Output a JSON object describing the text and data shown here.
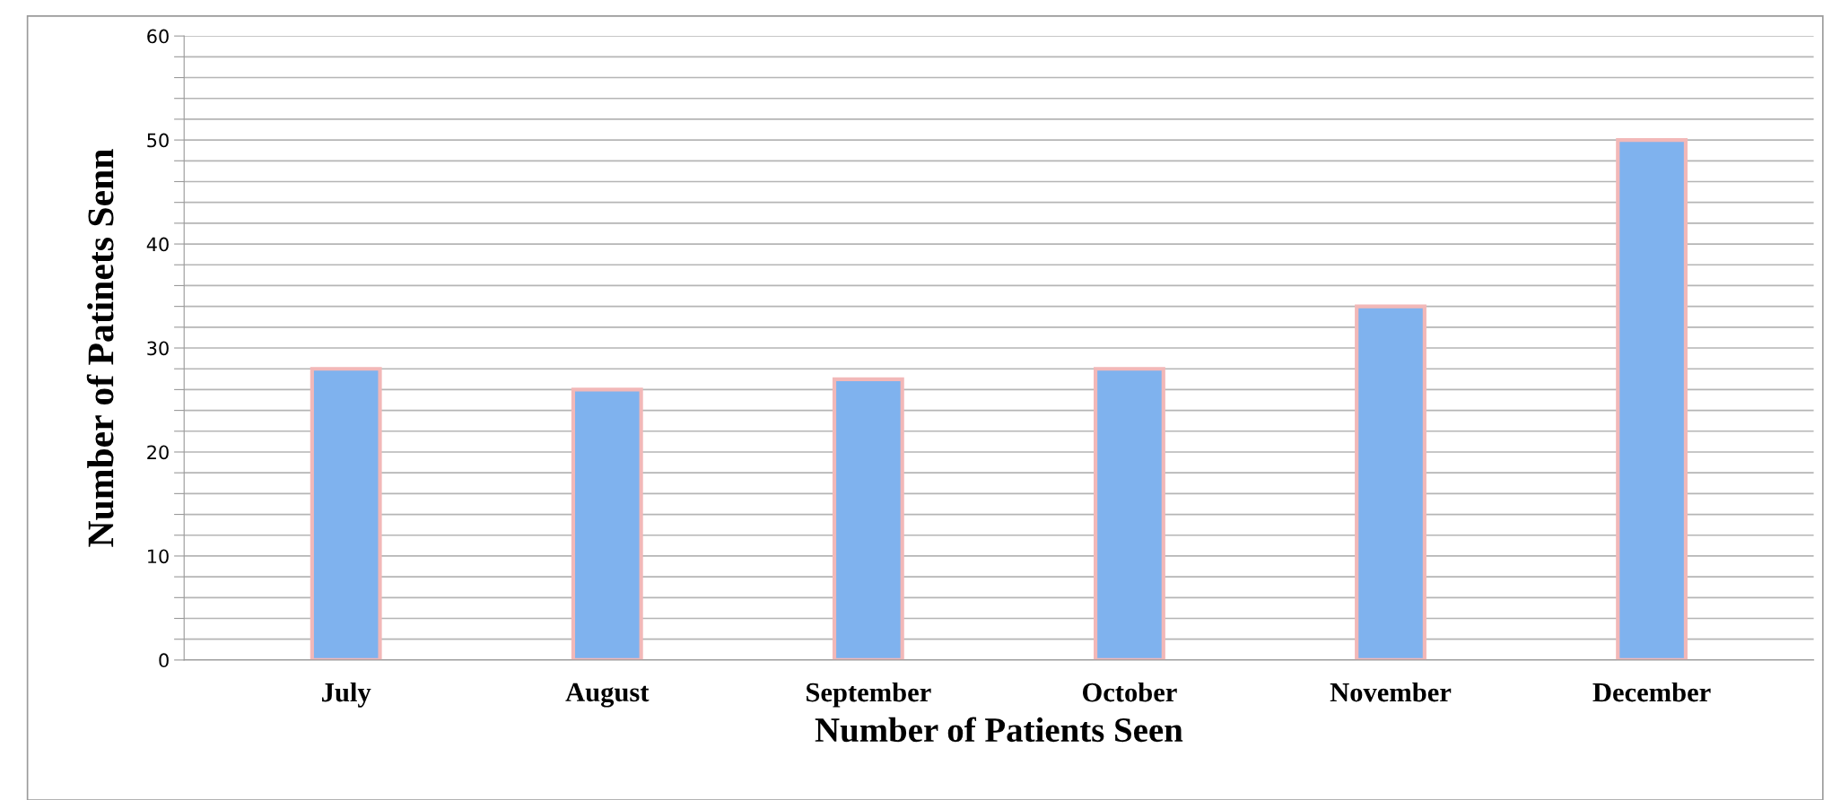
{
  "chart_data": {
    "type": "bar",
    "xlabel": "Number of Patients Seen",
    "ylabel": "Number of Patinets Senn",
    "categories": [
      "July",
      "August",
      "September",
      "October",
      "November",
      "December"
    ],
    "values": [
      28,
      26,
      27,
      28,
      34,
      50
    ],
    "color": "#7fb2ee",
    "ylim": [
      0,
      60
    ],
    "yticks": [
      0,
      {
        "value": 2,
        "label": null
      },
      {
        "value": 4,
        "label": null
      },
      {
        "value": 6,
        "label": null
      },
      {
        "value": 8,
        "label": null
      },
      10,
      {
        "value": 12,
        "label": null
      },
      {
        "value": 14,
        "label": null
      },
      {
        "value": 16,
        "label": null
      },
      {
        "value": 18,
        "label": null
      },
      20,
      {
        "value": 22,
        "label": null
      },
      {
        "value": 24,
        "label": null
      },
      {
        "value": 26,
        "label": null
      },
      {
        "value": 28,
        "label": null
      },
      30,
      {
        "value": 32,
        "label": null
      },
      {
        "value": 34,
        "label": null
      },
      {
        "value": 36,
        "label": null
      },
      {
        "value": 38,
        "label": null
      },
      40,
      {
        "value": 42,
        "label": null
      },
      {
        "value": 44,
        "label": null
      },
      {
        "value": 46,
        "label": null
      },
      {
        "value": 48,
        "label": null
      },
      50,
      {
        "value": 52,
        "label": null
      },
      {
        "value": 54,
        "label": null
      },
      {
        "value": 56,
        "label": null
      },
      {
        "value": 58,
        "label": null
      },
      60
    ],
    "grid": "y"
  }
}
